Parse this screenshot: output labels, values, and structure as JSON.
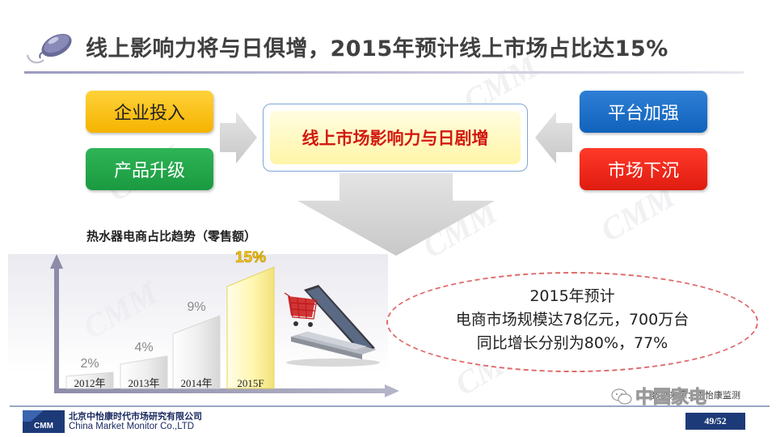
{
  "header": {
    "title": "线上影响力将与日俱增，2015年预计线上市场占比达15%",
    "icon": "computer-mouse-icon"
  },
  "drivers": {
    "left": [
      "企业投入",
      "产品升级"
    ],
    "right": [
      "平台加强",
      "市场下沉"
    ],
    "center": "线上市场影响力与日剧增"
  },
  "chart": {
    "title": "热水器电商占比趋势（零售额）"
  },
  "chart_data": {
    "type": "bar",
    "categories": [
      "2012年",
      "2013年",
      "2014年",
      "2015F"
    ],
    "values": [
      2,
      4,
      9,
      15
    ],
    "labels": [
      "2%",
      "4%",
      "9%",
      "15%"
    ],
    "highlight": "2015F",
    "unit": "%",
    "ylim": [
      0,
      16
    ]
  },
  "callout": {
    "lines": [
      "2015年预计",
      "电商市场规模达78亿元，700万台",
      "同比增长分别为80%，77%"
    ]
  },
  "footer": {
    "company_cn": "北京中怡康时代市场研究有限公司",
    "company_en": "China Market Monitor Co.,LTD",
    "logo_text": "CMM",
    "source": "数据来源：中怡康监测",
    "wechat": "中国家电",
    "page": "49/52"
  },
  "colors": {
    "yellow": "#f5b300",
    "green": "#1b9a40",
    "blue": "#1062bb",
    "red": "#e01b10",
    "highlight_text": "#d21a10",
    "footer_navy": "#1d3a78"
  }
}
